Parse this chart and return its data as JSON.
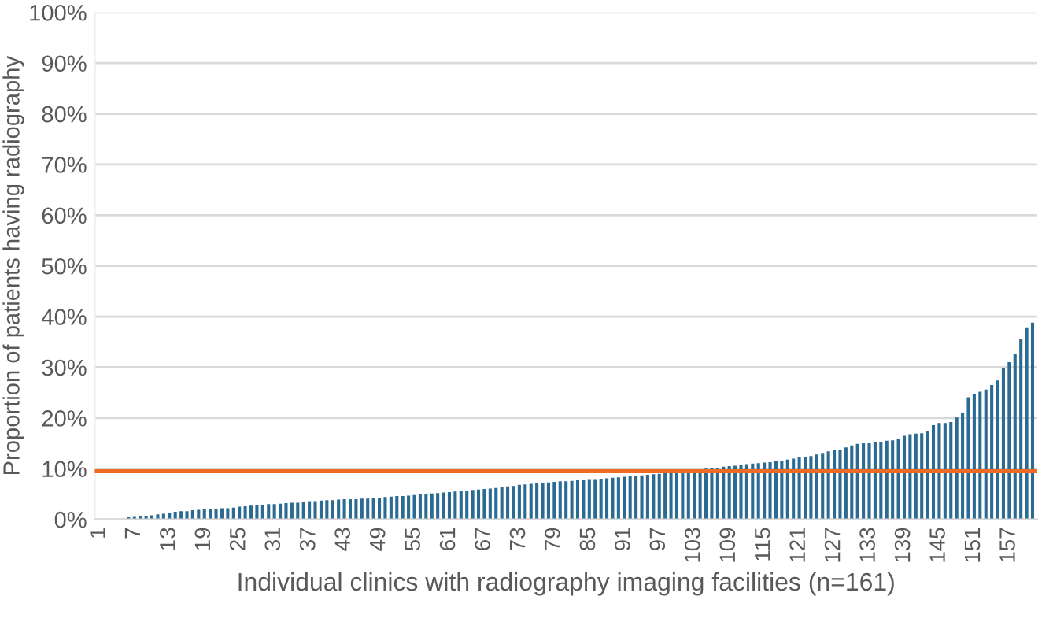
{
  "chart_data": {
    "type": "bar",
    "xlabel": "Individual clinics with radiography imaging facilities (n=161)",
    "ylabel": "Proportion of patients having radiography",
    "categories": [
      "1",
      null,
      null,
      null,
      null,
      null,
      "7",
      null,
      null,
      null,
      null,
      null,
      "13",
      null,
      null,
      null,
      null,
      null,
      "19",
      null,
      null,
      null,
      null,
      null,
      "25",
      null,
      null,
      null,
      null,
      null,
      "31",
      null,
      null,
      null,
      null,
      null,
      "37",
      null,
      null,
      null,
      null,
      null,
      "43",
      null,
      null,
      null,
      null,
      null,
      "49",
      null,
      null,
      null,
      null,
      null,
      "55",
      null,
      null,
      null,
      null,
      null,
      "61",
      null,
      null,
      null,
      null,
      null,
      "67",
      null,
      null,
      null,
      null,
      null,
      "73",
      null,
      null,
      null,
      null,
      null,
      "79",
      null,
      null,
      null,
      null,
      null,
      "85",
      null,
      null,
      null,
      null,
      null,
      "91",
      null,
      null,
      null,
      null,
      null,
      "97",
      null,
      null,
      null,
      null,
      null,
      "103",
      null,
      null,
      null,
      null,
      null,
      "109",
      null,
      null,
      null,
      null,
      null,
      "115",
      null,
      null,
      null,
      null,
      null,
      "121",
      null,
      null,
      null,
      null,
      null,
      "127",
      null,
      null,
      null,
      null,
      null,
      "133",
      null,
      null,
      null,
      null,
      null,
      "139",
      null,
      null,
      null,
      null,
      null,
      "145",
      null,
      null,
      null,
      null,
      null,
      "151",
      null,
      null,
      null,
      null,
      null,
      "157",
      null,
      null,
      null,
      null
    ],
    "values": [
      0,
      0,
      0,
      0,
      0,
      0.4,
      0.5,
      0.6,
      0.7,
      0.8,
      1.0,
      1.1,
      1.3,
      1.5,
      1.6,
      1.6,
      1.8,
      1.9,
      2.0,
      2.0,
      2.1,
      2.2,
      2.2,
      2.3,
      2.5,
      2.6,
      2.7,
      2.8,
      2.9,
      3.0,
      3.0,
      3.1,
      3.2,
      3.3,
      3.3,
      3.5,
      3.6,
      3.6,
      3.7,
      3.8,
      3.8,
      3.9,
      4.0,
      4.0,
      4.0,
      4.1,
      4.1,
      4.2,
      4.3,
      4.4,
      4.5,
      4.6,
      4.6,
      4.7,
      4.8,
      4.9,
      5.0,
      5.1,
      5.2,
      5.3,
      5.4,
      5.5,
      5.6,
      5.7,
      5.8,
      5.9,
      6.0,
      6.1,
      6.2,
      6.3,
      6.5,
      6.6,
      6.8,
      6.9,
      7.0,
      7.1,
      7.2,
      7.3,
      7.4,
      7.5,
      7.5,
      7.6,
      7.7,
      7.7,
      7.8,
      7.8,
      8.0,
      8.1,
      8.2,
      8.3,
      8.4,
      8.5,
      8.6,
      8.7,
      8.8,
      8.9,
      9.0,
      9.1,
      9.3,
      9.4,
      9.5,
      9.6,
      9.8,
      9.9,
      10.0,
      10.1,
      10.2,
      10.4,
      10.5,
      10.6,
      10.8,
      10.9,
      11.0,
      11.1,
      11.2,
      11.3,
      11.5,
      11.6,
      11.8,
      12.0,
      12.2,
      12.3,
      12.5,
      12.8,
      13.1,
      13.4,
      13.6,
      13.7,
      14.2,
      14.6,
      14.9,
      15.0,
      15.0,
      15.2,
      15.3,
      15.5,
      15.6,
      15.8,
      16.5,
      16.8,
      16.9,
      17.0,
      17.5,
      18.6,
      19.0,
      19.0,
      19.2,
      20.1,
      21.0,
      24.1,
      24.8,
      25.2,
      25.6,
      26.5,
      27.4,
      29.8,
      31.0,
      32.7,
      35.6,
      37.9,
      38.8
    ],
    "color": "#2b6a92",
    "ylim": [
      0,
      100
    ],
    "yticks": [
      {
        "value": 0,
        "label": "0%"
      },
      {
        "value": 10,
        "label": "10%"
      },
      {
        "value": 20,
        "label": "20%"
      },
      {
        "value": 30,
        "label": "30%"
      },
      {
        "value": 40,
        "label": "40%"
      },
      {
        "value": 50,
        "label": "50%"
      },
      {
        "value": 60,
        "label": "60%"
      },
      {
        "value": 70,
        "label": "70%"
      },
      {
        "value": 80,
        "label": "80%"
      },
      {
        "value": 90,
        "label": "90%"
      },
      {
        "value": 100,
        "label": "100%"
      }
    ],
    "ref_lines": [
      {
        "axis": "y",
        "value": 9.5,
        "color": "#ed6b25"
      }
    ],
    "grid": "y"
  }
}
